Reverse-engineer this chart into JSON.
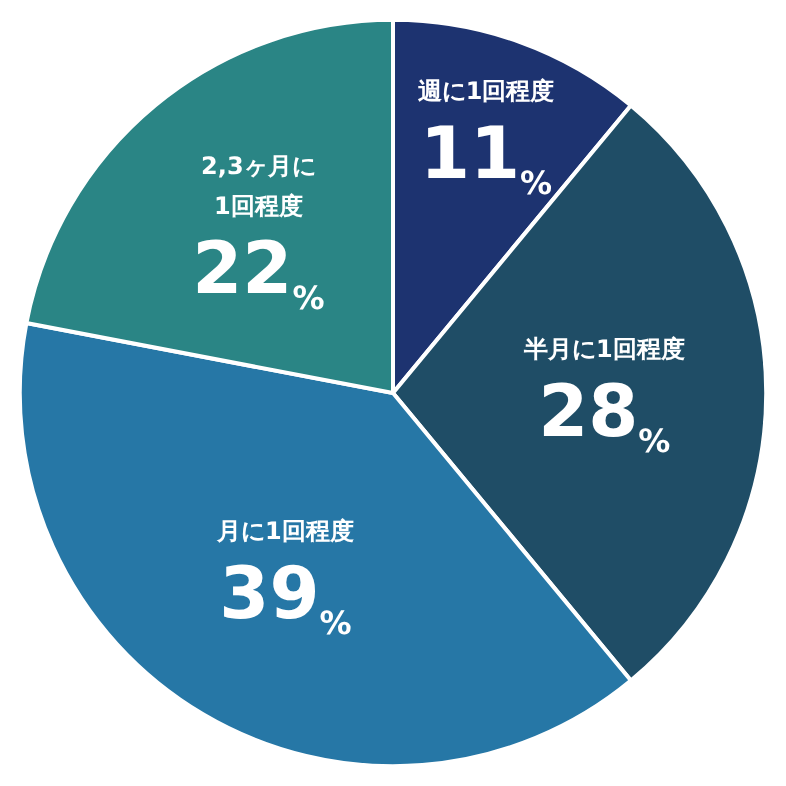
{
  "chart_data": {
    "type": "pie",
    "categories": [
      "週に1回程度",
      "半月に1回程度",
      "月に1回程度",
      "2,3ヶ月に\n1回程度"
    ],
    "values": [
      11,
      28,
      39,
      22
    ],
    "colors": [
      "#1d3370",
      "#1f4d66",
      "#2677a6",
      "#2a8585"
    ],
    "value_labels": [
      "11%",
      "28%",
      "39%",
      "22%"
    ],
    "legend": false
  }
}
